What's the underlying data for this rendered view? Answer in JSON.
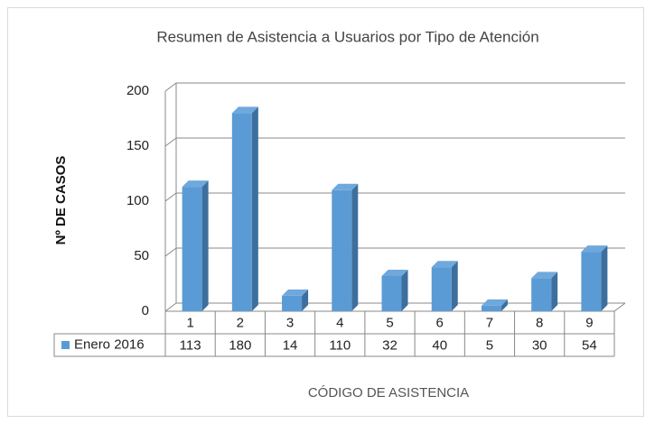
{
  "chart_data": {
    "type": "bar",
    "title": "Resumen de Asistencia a Usuarios por Tipo de Atención",
    "y_label": "Nº DE CASOS",
    "x_label": "CÓDIGO DE ASISTENCIA",
    "categories": [
      "1",
      "2",
      "3",
      "4",
      "5",
      "6",
      "7",
      "8",
      "9"
    ],
    "series": [
      {
        "name": "Enero 2016",
        "color": "#5b9bd5",
        "values": [
          113,
          180,
          14,
          110,
          32,
          40,
          5,
          30,
          54
        ]
      }
    ],
    "ylim": [
      0,
      200
    ],
    "yticks": [
      0,
      50,
      100,
      150,
      200
    ],
    "grid": true
  }
}
